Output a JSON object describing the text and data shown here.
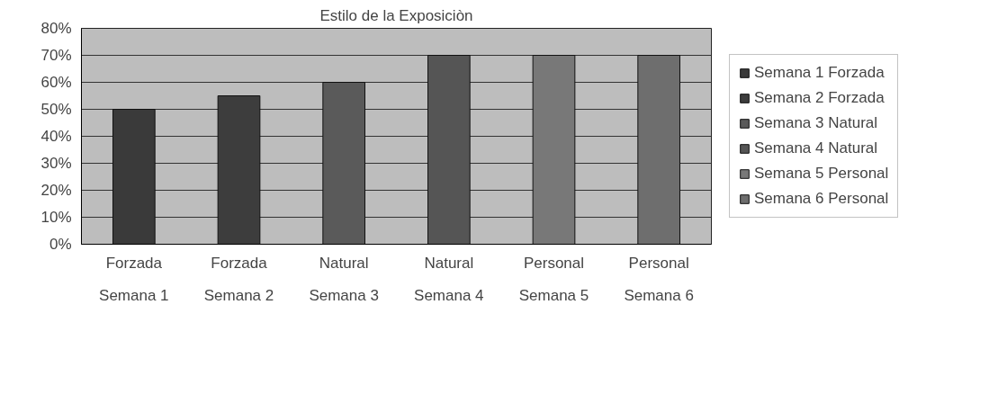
{
  "chart_data": {
    "type": "bar",
    "title": "Estilo de la Exposiciòn",
    "categories": [
      "Forzada\nSemana 1",
      "Forzada\nSemana 2",
      "Natural\nSemana 3",
      "Natural\nSemana 4",
      "Personal\nSemana 5",
      "Personal\nSemana 6"
    ],
    "series": [
      {
        "name": "Semana 1 Forzada",
        "color": "#3a3a3a",
        "values": [
          50,
          null,
          null,
          null,
          null,
          null
        ]
      },
      {
        "name": "Semana 2 Forzada",
        "color": "#3d3d3d",
        "values": [
          null,
          55,
          null,
          null,
          null,
          null
        ]
      },
      {
        "name": "Semana 3 Natural",
        "color": "#5a5a5a",
        "values": [
          null,
          null,
          60,
          null,
          null,
          null
        ]
      },
      {
        "name": "Semana 4 Natural",
        "color": "#555555",
        "values": [
          null,
          null,
          null,
          70,
          null,
          null
        ]
      },
      {
        "name": "Semana 5 Personal",
        "color": "#787878",
        "values": [
          null,
          null,
          null,
          null,
          70,
          null
        ]
      },
      {
        "name": "Semana 6 Personal",
        "color": "#6e6e6e",
        "values": [
          null,
          null,
          null,
          null,
          null,
          70
        ]
      }
    ],
    "ylim": [
      0,
      80
    ],
    "yticks": [
      {
        "value": 0,
        "label": "0%"
      },
      {
        "value": 10,
        "label": "10%"
      },
      {
        "value": 20,
        "label": "20%"
      },
      {
        "value": 30,
        "label": "30%"
      },
      {
        "value": 40,
        "label": "40%"
      },
      {
        "value": 50,
        "label": "50%"
      },
      {
        "value": 60,
        "label": "60%"
      },
      {
        "value": 70,
        "label": "70%"
      },
      {
        "value": 80,
        "label": "80%"
      }
    ],
    "grid": "y",
    "legend": "right"
  }
}
